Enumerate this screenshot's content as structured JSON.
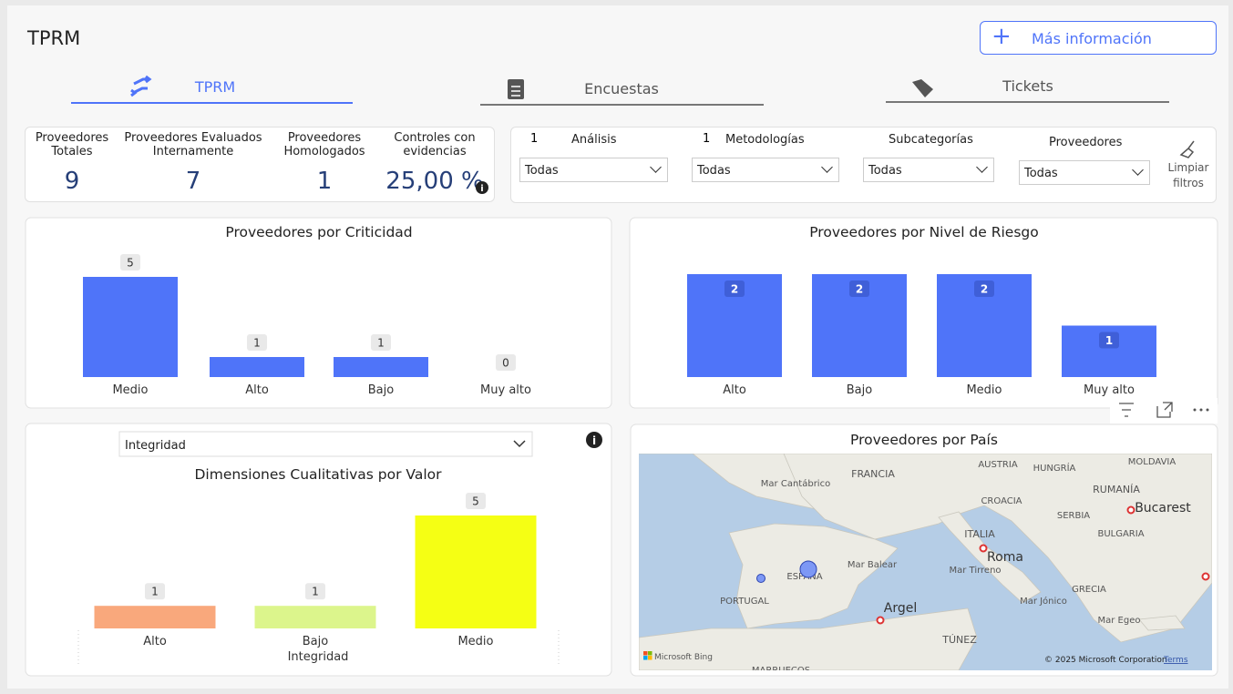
{
  "header": {
    "title": "TPRM",
    "button": "Más información"
  },
  "tabs": [
    {
      "label": "TPRM",
      "active": true
    },
    {
      "label": "Encuestas"
    },
    {
      "label": "Tickets"
    }
  ],
  "kpis": [
    {
      "label": "Proveedores Totales",
      "value": "9"
    },
    {
      "label": "Proveedores Evaluados Internamente",
      "value": "7"
    },
    {
      "label": "Proveedores Homologados",
      "value": "1"
    },
    {
      "label": "Controles con evidencias",
      "value": "25,00 %"
    }
  ],
  "filters": [
    {
      "count": "1",
      "label": "Análisis",
      "selection": "Todas"
    },
    {
      "count": "1",
      "label": "Metodologías",
      "selection": "Todas"
    },
    {
      "label": "Subcategorías",
      "selection": "Todas"
    },
    {
      "label": "Proveedores",
      "selection": "Todas"
    }
  ],
  "clear_filters": "Limpiar filtros",
  "chart_data": [
    {
      "type": "bar",
      "title": "Proveedores por Criticidad",
      "categories": [
        "Medio",
        "Alto",
        "Bajo",
        "Muy alto"
      ],
      "values": [
        5,
        1,
        1,
        0
      ],
      "color": "#4f74f9"
    },
    {
      "type": "bar",
      "title": "Proveedores por Nivel de Riesgo",
      "categories": [
        "Alto",
        "Bajo",
        "Medio",
        "Muy alto"
      ],
      "values": [
        2,
        2,
        2,
        1
      ],
      "color": "#4f74f9"
    },
    {
      "type": "bar",
      "title": "Dimensiones Cualitativas por Valor",
      "selector": "Integridad",
      "x_label": "Integridad",
      "categories": [
        "Alto",
        "Bajo",
        "Medio"
      ],
      "values": [
        1,
        1,
        5
      ],
      "colors": [
        "#f9a87c",
        "#dcf58c",
        "#f5ff14"
      ]
    }
  ],
  "map": {
    "title": "Proveedores por País",
    "labels": [
      "Mar Cantábrico",
      "FRANCIA",
      "AUSTRIA",
      "HUNGRÍA",
      "MOLDAVIA",
      "RUMANÍA",
      "Bucarest",
      "CROACIA",
      "SERBIA",
      "BULGARIA",
      "ITALIA",
      "Roma",
      "Mar Balear",
      "Mar Tirreno",
      "ESPAÑA",
      "PORTUGAL",
      "Argel",
      "Mar Jónico",
      "GRECIA",
      "Mar Egeo",
      "TÚNEZ",
      "MARRUECOS"
    ],
    "attribution": "Microsoft Bing",
    "copyright": "© 2025 Microsoft Corporation",
    "terms": "Terms"
  }
}
